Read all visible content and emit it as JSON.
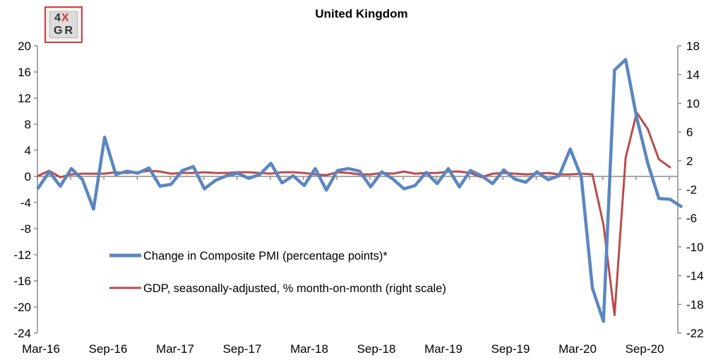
{
  "logo": {
    "top": "4",
    "accent": "X",
    "bottom": "GR"
  },
  "chart_data": {
    "type": "line",
    "title": "United Kingdom",
    "x_ticks": [
      "Mar-16",
      "Sep-16",
      "Mar-17",
      "Sep-17",
      "Mar-18",
      "Sep-18",
      "Mar-19",
      "Sep-19",
      "Mar-20",
      "Sep-20"
    ],
    "x_start": "Mar-16",
    "left_axis": {
      "ylim": [
        -24,
        20
      ],
      "ticks": [
        20,
        16,
        12,
        8,
        4,
        0,
        -4,
        -8,
        -12,
        -16,
        -20,
        -24
      ]
    },
    "right_axis": {
      "ylim": [
        -22,
        18
      ],
      "ticks": [
        18,
        14,
        10,
        6,
        2,
        -2,
        -6,
        -10,
        -14,
        -18,
        -22
      ]
    },
    "zero_line": true,
    "grid": false,
    "legend_position": "lower-left",
    "series": [
      {
        "name": "Change in Composite PMI (percentage points)*",
        "axis": "left",
        "color": "#5b86c1",
        "values": [
          -1.8,
          0.7,
          -1.5,
          1.2,
          -0.5,
          -5.0,
          6.0,
          0.3,
          0.8,
          0.5,
          1.3,
          -1.5,
          -1.2,
          0.9,
          1.5,
          -1.9,
          -0.6,
          0.1,
          0.5,
          -0.3,
          0.3,
          2.0,
          -1.0,
          0.1,
          -1.4,
          1.2,
          -2.1,
          0.9,
          1.2,
          0.8,
          -1.6,
          0.7,
          -0.4,
          -1.9,
          -1.4,
          0.6,
          -1.1,
          1.2,
          -1.6,
          0.9,
          0.1,
          -1.1,
          1.0,
          -0.4,
          -0.9,
          0.7,
          -0.5,
          0.1,
          4.2,
          -0.1,
          -17.1,
          -22.2,
          16.3,
          17.9,
          9.0,
          2.0,
          -3.4,
          -3.5,
          -4.6
        ]
      },
      {
        "name": "GDP, seasonally-adjusted, % month-on-month (right scale)",
        "axis": "right",
        "color": "#b84c4c",
        "values": [
          -0.1,
          0.6,
          -0.3,
          0.1,
          0.2,
          0.2,
          0.2,
          0.4,
          0.3,
          0.4,
          0.6,
          0.5,
          0.2,
          0.3,
          0.3,
          0.4,
          0.3,
          0.3,
          0.4,
          0.4,
          0.3,
          0.2,
          0.4,
          0.4,
          0.3,
          0.1,
          0.0,
          0.4,
          0.3,
          0.1,
          0.1,
          0.3,
          0.2,
          0.5,
          0.2,
          0.3,
          0.3,
          0.5,
          0.5,
          0.3,
          -0.3,
          0.2,
          0.3,
          0.2,
          0.1,
          0.2,
          0.3,
          0.1,
          0.1,
          0.2,
          0.1,
          -6.9,
          -19.5,
          2.4,
          8.7,
          6.4,
          2.2,
          1.1
        ]
      }
    ]
  }
}
